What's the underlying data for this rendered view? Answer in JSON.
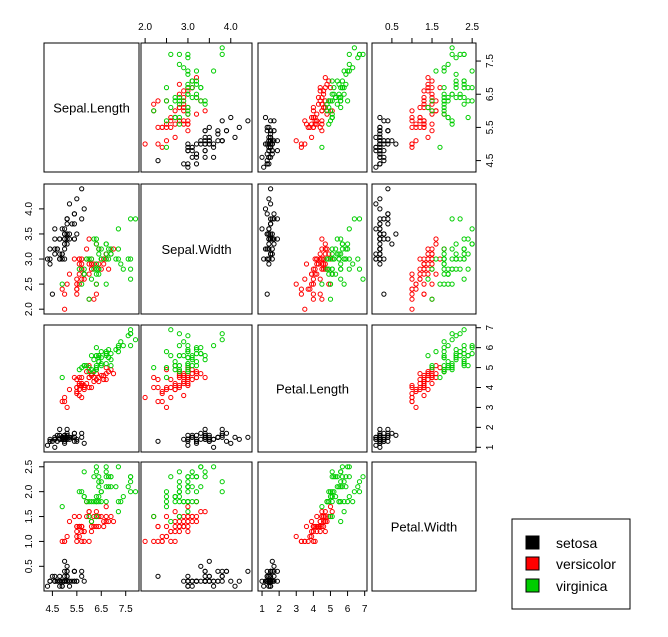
{
  "chart_data": {
    "type": "scatter",
    "subtype": "pairs",
    "variables": [
      "Sepal.Length",
      "Sepal.Width",
      "Petal.Length",
      "Petal.Width"
    ],
    "ranges": [
      [
        4.3,
        7.9
      ],
      [
        2.0,
        4.4
      ],
      [
        1.0,
        6.9
      ],
      [
        0.1,
        2.5
      ]
    ],
    "ticks": [
      [
        "4.5",
        "5.5",
        "6.5",
        "7.5"
      ],
      [
        "2.0",
        "2.5",
        "3.0",
        "3.5",
        "4.0"
      ],
      [
        "1",
        "2",
        "3",
        "4",
        "5",
        "6",
        "7"
      ],
      [
        "0.5",
        "1.0",
        "1.5",
        "2.0",
        "2.5"
      ]
    ],
    "axis_labels": {
      "top": [
        {
          "col": 1,
          "ticks": [
            "2.0",
            "3.0",
            "4.0"
          ]
        },
        {
          "col": 3,
          "ticks": [
            "0.5",
            "1.5",
            "2.5"
          ]
        }
      ],
      "right": [
        {
          "row": 0,
          "ticks": [
            "4.5",
            "5.5",
            "6.5",
            "7.5"
          ]
        },
        {
          "row": 2,
          "ticks": [
            "1",
            "2",
            "3",
            "4",
            "5",
            "6",
            "7"
          ]
        }
      ],
      "left": [
        {
          "row": 1,
          "ticks": [
            "2.0",
            "2.5",
            "3.0",
            "3.5",
            "4.0"
          ]
        },
        {
          "row": 3,
          "ticks": [
            "0.5",
            "1.0",
            "1.5",
            "2.0",
            "2.5"
          ]
        }
      ],
      "bottom": [
        {
          "col": 0,
          "ticks": [
            "4.5",
            "5.5",
            "6.5",
            "7.5"
          ]
        },
        {
          "col": 2,
          "ticks": [
            "1",
            "2",
            "3",
            "4",
            "5",
            "6",
            "7"
          ]
        }
      ]
    },
    "legend_position": "bottom-right",
    "series": [
      {
        "name": "setosa",
        "color": "#000000",
        "points": [
          [
            5.1,
            3.5,
            1.4,
            0.2
          ],
          [
            4.9,
            3.0,
            1.4,
            0.2
          ],
          [
            4.7,
            3.2,
            1.3,
            0.2
          ],
          [
            4.6,
            3.1,
            1.5,
            0.2
          ],
          [
            5.0,
            3.6,
            1.4,
            0.2
          ],
          [
            5.4,
            3.9,
            1.7,
            0.4
          ],
          [
            4.6,
            3.4,
            1.4,
            0.3
          ],
          [
            5.0,
            3.4,
            1.5,
            0.2
          ],
          [
            4.4,
            2.9,
            1.4,
            0.2
          ],
          [
            4.9,
            3.1,
            1.5,
            0.1
          ],
          [
            5.4,
            3.7,
            1.5,
            0.2
          ],
          [
            4.8,
            3.4,
            1.6,
            0.2
          ],
          [
            4.8,
            3.0,
            1.4,
            0.1
          ],
          [
            4.3,
            3.0,
            1.1,
            0.1
          ],
          [
            5.8,
            4.0,
            1.2,
            0.2
          ],
          [
            5.7,
            4.4,
            1.5,
            0.4
          ],
          [
            5.4,
            3.9,
            1.3,
            0.4
          ],
          [
            5.1,
            3.5,
            1.4,
            0.3
          ],
          [
            5.7,
            3.8,
            1.7,
            0.3
          ],
          [
            5.1,
            3.8,
            1.5,
            0.3
          ],
          [
            5.4,
            3.4,
            1.7,
            0.2
          ],
          [
            5.1,
            3.7,
            1.5,
            0.4
          ],
          [
            4.6,
            3.6,
            1.0,
            0.2
          ],
          [
            5.1,
            3.3,
            1.7,
            0.5
          ],
          [
            4.8,
            3.4,
            1.9,
            0.2
          ],
          [
            5.0,
            3.0,
            1.6,
            0.2
          ],
          [
            5.0,
            3.4,
            1.6,
            0.4
          ],
          [
            5.2,
            3.5,
            1.5,
            0.2
          ],
          [
            5.2,
            3.4,
            1.4,
            0.2
          ],
          [
            4.7,
            3.2,
            1.6,
            0.2
          ],
          [
            4.8,
            3.1,
            1.6,
            0.2
          ],
          [
            5.4,
            3.4,
            1.5,
            0.4
          ],
          [
            5.2,
            4.1,
            1.5,
            0.1
          ],
          [
            5.5,
            4.2,
            1.4,
            0.2
          ],
          [
            4.9,
            3.1,
            1.5,
            0.2
          ],
          [
            5.0,
            3.2,
            1.2,
            0.2
          ],
          [
            5.5,
            3.5,
            1.3,
            0.2
          ],
          [
            4.9,
            3.6,
            1.4,
            0.1
          ],
          [
            4.4,
            3.0,
            1.3,
            0.2
          ],
          [
            5.1,
            3.4,
            1.5,
            0.2
          ],
          [
            5.0,
            3.5,
            1.3,
            0.3
          ],
          [
            4.5,
            2.3,
            1.3,
            0.3
          ],
          [
            4.4,
            3.2,
            1.3,
            0.2
          ],
          [
            5.0,
            3.5,
            1.6,
            0.6
          ],
          [
            5.1,
            3.8,
            1.9,
            0.4
          ],
          [
            4.8,
            3.0,
            1.4,
            0.3
          ],
          [
            5.1,
            3.8,
            1.6,
            0.2
          ],
          [
            4.6,
            3.2,
            1.4,
            0.2
          ],
          [
            5.3,
            3.7,
            1.5,
            0.2
          ],
          [
            5.0,
            3.3,
            1.4,
            0.2
          ]
        ]
      },
      {
        "name": "versicolor",
        "color": "#ff0000",
        "points": [
          [
            7.0,
            3.2,
            4.7,
            1.4
          ],
          [
            6.4,
            3.2,
            4.5,
            1.5
          ],
          [
            6.9,
            3.1,
            4.9,
            1.5
          ],
          [
            5.5,
            2.3,
            4.0,
            1.3
          ],
          [
            6.5,
            2.8,
            4.6,
            1.5
          ],
          [
            5.7,
            2.8,
            4.5,
            1.3
          ],
          [
            6.3,
            3.3,
            4.7,
            1.6
          ],
          [
            4.9,
            2.4,
            3.3,
            1.0
          ],
          [
            6.6,
            2.9,
            4.6,
            1.3
          ],
          [
            5.2,
            2.7,
            3.9,
            1.4
          ],
          [
            5.0,
            2.0,
            3.5,
            1.0
          ],
          [
            5.9,
            3.0,
            4.2,
            1.5
          ],
          [
            6.0,
            2.2,
            4.0,
            1.0
          ],
          [
            6.1,
            2.9,
            4.7,
            1.4
          ],
          [
            5.6,
            2.9,
            3.6,
            1.3
          ],
          [
            6.7,
            3.1,
            4.4,
            1.4
          ],
          [
            5.6,
            3.0,
            4.5,
            1.5
          ],
          [
            5.8,
            2.7,
            4.1,
            1.0
          ],
          [
            6.2,
            2.2,
            4.5,
            1.5
          ],
          [
            5.6,
            2.5,
            3.9,
            1.1
          ],
          [
            5.9,
            3.2,
            4.8,
            1.8
          ],
          [
            6.1,
            2.8,
            4.0,
            1.3
          ],
          [
            6.3,
            2.5,
            4.9,
            1.5
          ],
          [
            6.1,
            2.8,
            4.7,
            1.2
          ],
          [
            6.4,
            2.9,
            4.3,
            1.3
          ],
          [
            6.6,
            3.0,
            4.4,
            1.4
          ],
          [
            6.8,
            2.8,
            4.8,
            1.4
          ],
          [
            6.7,
            3.0,
            5.0,
            1.7
          ],
          [
            6.0,
            2.9,
            4.5,
            1.5
          ],
          [
            5.7,
            2.6,
            3.5,
            1.0
          ],
          [
            5.5,
            2.4,
            3.8,
            1.1
          ],
          [
            5.5,
            2.4,
            3.7,
            1.0
          ],
          [
            5.8,
            2.7,
            3.9,
            1.2
          ],
          [
            6.0,
            2.7,
            5.1,
            1.6
          ],
          [
            5.4,
            3.0,
            4.5,
            1.5
          ],
          [
            6.0,
            3.4,
            4.5,
            1.6
          ],
          [
            6.7,
            3.1,
            4.7,
            1.5
          ],
          [
            6.3,
            2.3,
            4.4,
            1.3
          ],
          [
            5.6,
            3.0,
            4.1,
            1.3
          ],
          [
            5.5,
            2.5,
            4.0,
            1.3
          ],
          [
            5.5,
            2.6,
            4.4,
            1.2
          ],
          [
            6.1,
            3.0,
            4.6,
            1.4
          ],
          [
            5.8,
            2.6,
            4.0,
            1.2
          ],
          [
            5.0,
            2.3,
            3.3,
            1.0
          ],
          [
            5.6,
            2.7,
            4.2,
            1.3
          ],
          [
            5.7,
            3.0,
            4.2,
            1.2
          ],
          [
            5.7,
            2.9,
            4.2,
            1.3
          ],
          [
            6.2,
            2.9,
            4.3,
            1.3
          ],
          [
            5.1,
            2.5,
            3.0,
            1.1
          ],
          [
            5.7,
            2.8,
            4.1,
            1.3
          ]
        ]
      },
      {
        "name": "virginica",
        "color": "#00cd00",
        "points": [
          [
            6.3,
            3.3,
            6.0,
            2.5
          ],
          [
            5.8,
            2.7,
            5.1,
            1.9
          ],
          [
            7.1,
            3.0,
            5.9,
            2.1
          ],
          [
            6.3,
            2.9,
            5.6,
            1.8
          ],
          [
            6.5,
            3.0,
            5.8,
            2.2
          ],
          [
            7.6,
            3.0,
            6.6,
            2.1
          ],
          [
            4.9,
            2.5,
            4.5,
            1.7
          ],
          [
            7.3,
            2.9,
            6.3,
            1.8
          ],
          [
            6.7,
            2.5,
            5.8,
            1.8
          ],
          [
            7.2,
            3.6,
            6.1,
            2.5
          ],
          [
            6.5,
            3.2,
            5.1,
            2.0
          ],
          [
            6.4,
            2.7,
            5.3,
            1.9
          ],
          [
            6.8,
            3.0,
            5.5,
            2.1
          ],
          [
            5.7,
            2.5,
            5.0,
            2.0
          ],
          [
            5.8,
            2.8,
            5.1,
            2.4
          ],
          [
            6.4,
            3.2,
            5.3,
            2.3
          ],
          [
            6.5,
            3.0,
            5.5,
            1.8
          ],
          [
            7.7,
            3.8,
            6.7,
            2.2
          ],
          [
            7.7,
            2.6,
            6.9,
            2.3
          ],
          [
            6.0,
            2.2,
            5.0,
            1.5
          ],
          [
            6.9,
            3.2,
            5.7,
            2.3
          ],
          [
            5.6,
            2.8,
            4.9,
            2.0
          ],
          [
            7.7,
            2.8,
            6.7,
            2.0
          ],
          [
            6.3,
            2.7,
            4.9,
            1.8
          ],
          [
            6.7,
            3.3,
            5.7,
            2.1
          ],
          [
            7.2,
            3.2,
            6.0,
            1.8
          ],
          [
            6.2,
            2.8,
            4.8,
            1.8
          ],
          [
            6.1,
            3.0,
            4.9,
            1.8
          ],
          [
            6.4,
            2.8,
            5.6,
            2.1
          ],
          [
            7.2,
            3.0,
            5.8,
            1.6
          ],
          [
            7.4,
            2.8,
            6.1,
            1.9
          ],
          [
            7.9,
            3.8,
            6.4,
            2.0
          ],
          [
            6.4,
            2.8,
            5.6,
            2.2
          ],
          [
            6.3,
            2.8,
            5.1,
            1.5
          ],
          [
            6.1,
            2.6,
            5.6,
            1.4
          ],
          [
            7.7,
            3.0,
            6.1,
            2.3
          ],
          [
            6.3,
            3.4,
            5.6,
            2.4
          ],
          [
            6.4,
            3.1,
            5.5,
            1.8
          ],
          [
            6.0,
            3.0,
            4.8,
            1.8
          ],
          [
            6.9,
            3.1,
            5.4,
            2.1
          ],
          [
            6.7,
            3.1,
            5.6,
            2.4
          ],
          [
            6.9,
            3.1,
            5.1,
            2.3
          ],
          [
            5.8,
            2.7,
            5.1,
            1.9
          ],
          [
            6.8,
            3.2,
            5.9,
            2.3
          ],
          [
            6.7,
            3.3,
            5.7,
            2.5
          ],
          [
            6.7,
            3.0,
            5.2,
            2.3
          ],
          [
            6.3,
            2.5,
            5.0,
            1.9
          ],
          [
            6.5,
            3.0,
            5.2,
            2.0
          ],
          [
            6.2,
            3.4,
            5.4,
            2.3
          ],
          [
            5.9,
            3.0,
            5.1,
            1.8
          ]
        ]
      }
    ]
  }
}
